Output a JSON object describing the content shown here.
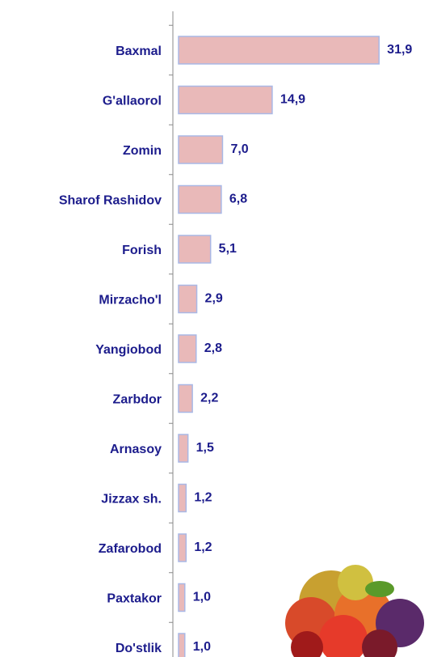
{
  "chart_data": {
    "type": "bar",
    "orientation": "horizontal",
    "categories": [
      "Baxmal",
      "G'allaorol",
      "Zomin",
      "Sharof Rashidov",
      "Forish",
      "Mirzacho'l",
      "Yangiobod",
      "Zarbdor",
      "Arnasoy",
      "Jizzax sh.",
      "Zafarobod",
      "Paxtakor",
      "Do'stlik"
    ],
    "values": [
      31.9,
      14.9,
      7.0,
      6.8,
      5.1,
      2.9,
      2.8,
      2.2,
      1.5,
      1.2,
      1.2,
      1.0,
      1.0
    ],
    "value_labels": [
      "31,9",
      "14,9",
      "7,0",
      "6,8",
      "5,1",
      "2,9",
      "2,8",
      "2,2",
      "1,5",
      "1,2",
      "1,2",
      "1,0",
      "1,0"
    ],
    "color": "#e9b9b9"
  }
}
